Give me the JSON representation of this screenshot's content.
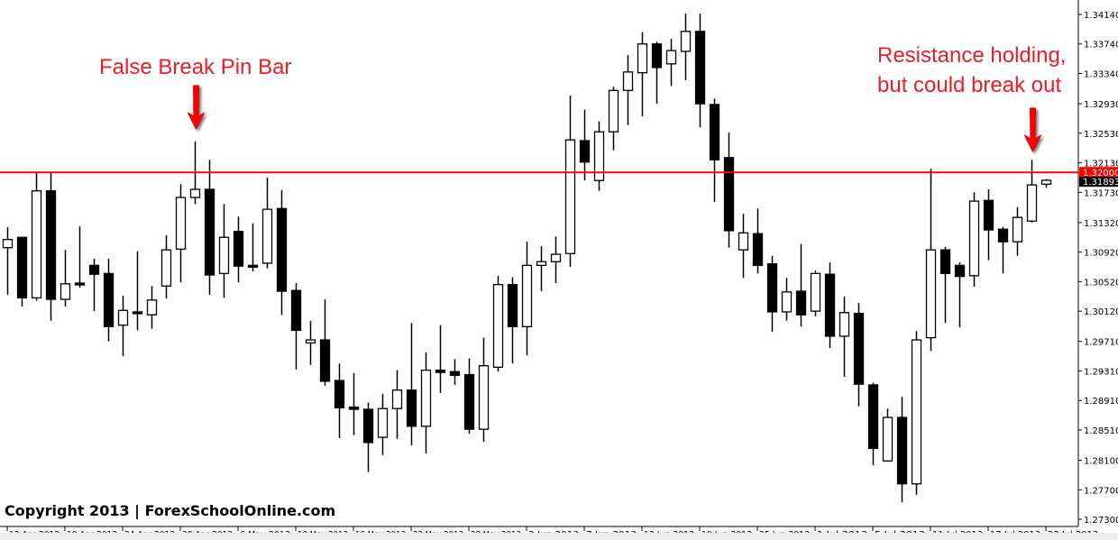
{
  "chart_data": {
    "type": "candlestick",
    "title": "",
    "xlabel": "",
    "ylabel": "",
    "ylim": [
      1.273,
      1.3414
    ],
    "grid": false,
    "legend": "none",
    "colors": {
      "up_body": "#ffffff",
      "down_body": "#000000",
      "outline": "#000000",
      "level_line": "#ff0000",
      "annotation": "#ee1c24"
    },
    "x_tick_labels": [
      {
        "index": 0,
        "label": "12 Apr 2013"
      },
      {
        "index": 4,
        "label": "18 Apr 2013"
      },
      {
        "index": 8,
        "label": "24 Apr 2013"
      },
      {
        "index": 12,
        "label": "30 Apr 2013"
      },
      {
        "index": 16,
        "label": "6 May 2013"
      },
      {
        "index": 20,
        "label": "10 May 2013"
      },
      {
        "index": 24,
        "label": "16 May 2013"
      },
      {
        "index": 28,
        "label": "22 May 2013"
      },
      {
        "index": 32,
        "label": "28 May 2013"
      },
      {
        "index": 36,
        "label": "3 Jun 2013"
      },
      {
        "index": 40,
        "label": "7 Jun 2013"
      },
      {
        "index": 44,
        "label": "13 Jun 2013"
      },
      {
        "index": 48,
        "label": "19 Jun 2013"
      },
      {
        "index": 52,
        "label": "25 Jun 2013"
      },
      {
        "index": 56,
        "label": "1 Jul 2013"
      },
      {
        "index": 60,
        "label": "5 Jul 2013"
      },
      {
        "index": 64,
        "label": "11 Jul 2013"
      },
      {
        "index": 68,
        "label": "17 Jul 2013"
      },
      {
        "index": 72,
        "label": "23 Jul 2013"
      }
    ],
    "y_tick_labels": [
      "1.34140",
      "1.33740",
      "1.33340",
      "1.32930",
      "1.32530",
      "1.32130",
      "1.31730",
      "1.31320",
      "1.30920",
      "1.30520",
      "1.30120",
      "1.29710",
      "1.29310",
      "1.28910",
      "1.28510",
      "1.28100",
      "1.27700",
      "1.27300"
    ],
    "candles_ohlc": [
      [
        1.3098,
        1.3126,
        1.3034,
        1.3109
      ],
      [
        1.3112,
        1.3113,
        1.3018,
        1.303
      ],
      [
        1.303,
        1.3199,
        1.3026,
        1.3175
      ],
      [
        1.3175,
        1.3199,
        1.2999,
        1.3028
      ],
      [
        1.3028,
        1.3095,
        1.3018,
        1.3049
      ],
      [
        1.305,
        1.3127,
        1.3044,
        1.3049
      ],
      [
        1.3074,
        1.3083,
        1.3012,
        1.3062
      ],
      [
        1.3063,
        1.3083,
        1.2971,
        1.2991
      ],
      [
        1.2993,
        1.3033,
        1.2951,
        1.3013
      ],
      [
        1.3011,
        1.3093,
        1.2986,
        1.301
      ],
      [
        1.3007,
        1.3046,
        1.2988,
        1.3027
      ],
      [
        1.3046,
        1.3115,
        1.3029,
        1.3095
      ],
      [
        1.3096,
        1.3184,
        1.3051,
        1.3166
      ],
      [
        1.3166,
        1.3242,
        1.3157,
        1.3177
      ],
      [
        1.3177,
        1.3217,
        1.3034,
        1.3061
      ],
      [
        1.3063,
        1.3157,
        1.303,
        1.3112
      ],
      [
        1.312,
        1.314,
        1.3051,
        1.3073
      ],
      [
        1.3074,
        1.3131,
        1.3066,
        1.3073
      ],
      [
        1.3077,
        1.3193,
        1.307,
        1.315
      ],
      [
        1.3151,
        1.3176,
        1.3007,
        1.3039
      ],
      [
        1.304,
        1.305,
        1.2933,
        1.2986
      ],
      [
        1.2969,
        1.2999,
        1.2939,
        1.2973
      ],
      [
        1.2973,
        1.3028,
        1.2911,
        1.2917
      ],
      [
        1.2918,
        1.2941,
        1.284,
        1.2881
      ],
      [
        1.2882,
        1.2928,
        1.2844,
        1.2879
      ],
      [
        1.2879,
        1.2888,
        1.2794,
        1.2834
      ],
      [
        1.2841,
        1.29,
        1.2817,
        1.288
      ],
      [
        1.288,
        1.2932,
        1.2839,
        1.2905
      ],
      [
        1.2905,
        1.2996,
        1.283,
        1.2856
      ],
      [
        1.2856,
        1.2956,
        1.2819,
        1.2932
      ],
      [
        1.2932,
        1.2993,
        1.2901,
        1.2929
      ],
      [
        1.293,
        1.2947,
        1.2912,
        1.2925
      ],
      [
        1.2926,
        1.2948,
        1.2846,
        1.2852
      ],
      [
        1.2852,
        1.2976,
        1.2835,
        1.2938
      ],
      [
        1.2936,
        1.306,
        1.293,
        1.3048
      ],
      [
        1.3048,
        1.3058,
        1.2941,
        1.2991
      ],
      [
        1.2991,
        1.3106,
        1.2952,
        1.3074
      ],
      [
        1.3074,
        1.31,
        1.3039,
        1.3079
      ],
      [
        1.3079,
        1.3113,
        1.305,
        1.3089
      ],
      [
        1.309,
        1.3304,
        1.3072,
        1.3244
      ],
      [
        1.3243,
        1.3285,
        1.3189,
        1.3214
      ],
      [
        1.3189,
        1.3269,
        1.3175,
        1.3255
      ],
      [
        1.3255,
        1.3316,
        1.323,
        1.3311
      ],
      [
        1.3311,
        1.3359,
        1.3264,
        1.3336
      ],
      [
        1.3335,
        1.339,
        1.3276,
        1.3374
      ],
      [
        1.3374,
        1.3377,
        1.3293,
        1.3342
      ],
      [
        1.3347,
        1.3381,
        1.3317,
        1.3365
      ],
      [
        1.3364,
        1.3415,
        1.3325,
        1.3391
      ],
      [
        1.3391,
        1.3415,
        1.3261,
        1.3293
      ],
      [
        1.3292,
        1.33,
        1.316,
        1.3217
      ],
      [
        1.322,
        1.3254,
        1.3098,
        1.3121
      ],
      [
        1.3095,
        1.3144,
        1.3057,
        1.3118
      ],
      [
        1.3117,
        1.3151,
        1.3063,
        1.3074
      ],
      [
        1.3076,
        1.3087,
        1.2984,
        1.3011
      ],
      [
        1.3011,
        1.3057,
        1.2999,
        1.3038
      ],
      [
        1.3039,
        1.3103,
        1.2991,
        1.3007
      ],
      [
        1.3012,
        1.3067,
        1.3005,
        1.3063
      ],
      [
        1.3062,
        1.3078,
        1.2962,
        1.2978
      ],
      [
        1.2978,
        1.3032,
        1.2923,
        1.301
      ],
      [
        1.3009,
        1.3023,
        1.2883,
        1.2913
      ],
      [
        1.2912,
        1.2915,
        1.2803,
        1.2826
      ],
      [
        1.2809,
        1.288,
        1.2808,
        1.2868
      ],
      [
        1.2868,
        1.2896,
        1.2753,
        1.2778
      ],
      [
        1.2778,
        1.2985,
        1.2763,
        1.2973
      ],
      [
        1.2976,
        1.3205,
        1.2958,
        1.3095
      ],
      [
        1.3095,
        1.3099,
        1.2996,
        1.3063
      ],
      [
        1.3074,
        1.3078,
        1.299,
        1.3059
      ],
      [
        1.306,
        1.3173,
        1.3045,
        1.3161
      ],
      [
        1.3162,
        1.3177,
        1.3081,
        1.3122
      ],
      [
        1.3123,
        1.3126,
        1.3063,
        1.3106
      ],
      [
        1.3106,
        1.3153,
        1.3087,
        1.3139
      ],
      [
        1.3134,
        1.3217,
        1.3132,
        1.3183
      ],
      [
        1.3184,
        1.3191,
        1.3179,
        1.31893
      ]
    ],
    "level_line": {
      "price": 1.32,
      "label": "1.32000"
    },
    "current_price_label": "1.31893",
    "annotations": [
      {
        "lines": [
          "False Break Pin Bar"
        ],
        "arrow_candle_index": 13
      },
      {
        "lines": [
          "Resistance holding,",
          "but could break out"
        ],
        "arrow_candle_index": 71
      }
    ]
  },
  "footer": {
    "copyright": "Copyright 2013 | ForexSchoolOnline.com"
  }
}
